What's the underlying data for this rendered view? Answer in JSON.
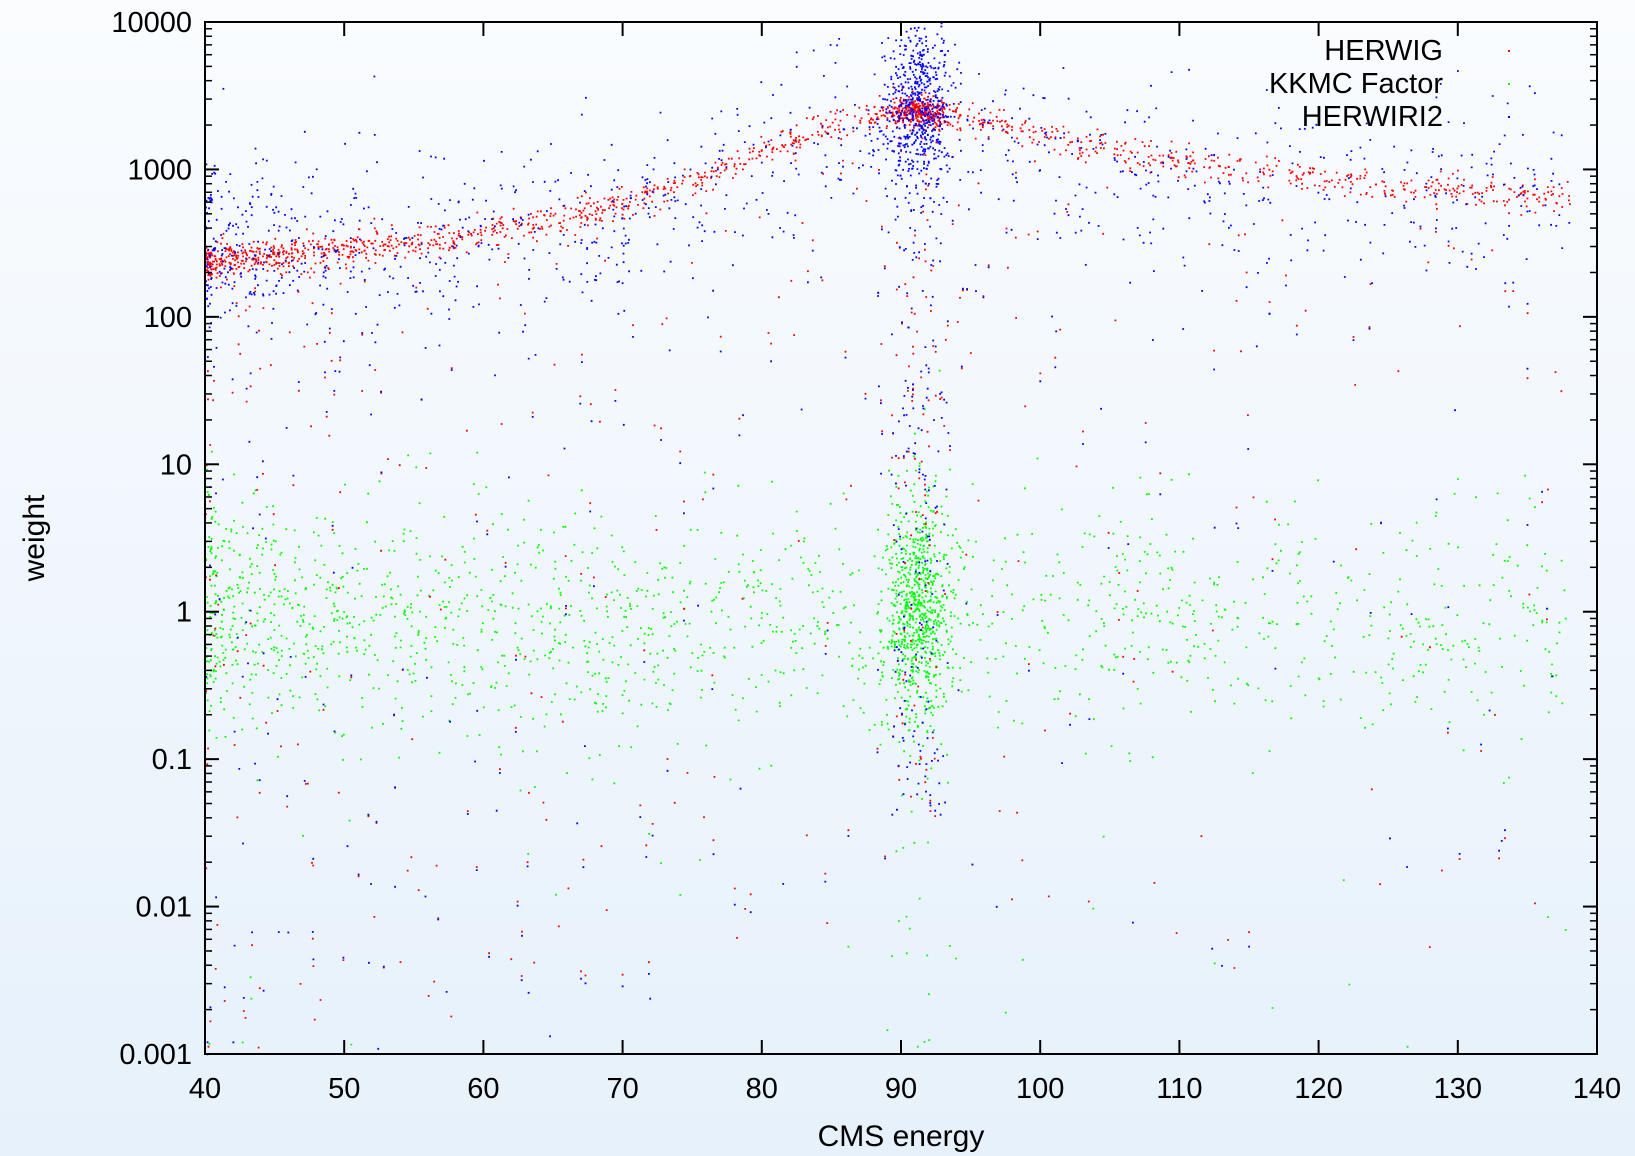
{
  "chart_data": {
    "type": "scatter",
    "title": "",
    "xlabel": "CMS energy",
    "ylabel": "weight",
    "xlim": [
      40,
      140
    ],
    "ylim": [
      0.001,
      10000
    ],
    "yscale": "log",
    "grid": false,
    "legend_position": "top-right",
    "x_ticks": [
      "40",
      "50",
      "60",
      "70",
      "80",
      "90",
      "100",
      "110",
      "120",
      "130",
      "140"
    ],
    "y_ticks": [
      "0.001",
      "0.01",
      "0.1",
      "1",
      "10",
      "100",
      "1000",
      "10000"
    ],
    "series": [
      {
        "name": "HERWIG",
        "color": "#ff0000",
        "description_points": {
          "x": [
            40,
            45,
            50,
            55,
            60,
            65,
            70,
            75,
            80,
            85,
            88,
            90,
            91.2,
            93,
            95,
            100,
            105,
            110,
            115,
            120,
            125,
            130,
            135,
            138
          ],
          "y": [
            240,
            265,
            290,
            320,
            370,
            450,
            600,
            850,
            1350,
            2000,
            2400,
            2550,
            2550,
            2400,
            2200,
            1700,
            1400,
            1150,
            1000,
            880,
            800,
            740,
            690,
            660
          ]
        }
      },
      {
        "name": "KKMC Factor",
        "color": "#00ff00",
        "description_points": {
          "x": [
            40,
            45,
            50,
            55,
            60,
            70,
            80,
            85,
            90,
            91.2,
            95,
            100,
            110,
            120,
            130,
            138
          ],
          "y": [
            1.05,
            1.0,
            0.95,
            0.9,
            0.85,
            0.8,
            0.85,
            0.95,
            1.05,
            1.05,
            1.0,
            0.95,
            0.9,
            0.85,
            0.85,
            0.85
          ]
        }
      },
      {
        "name": "HERWIRI2",
        "color": "#0000ff",
        "description_points": {
          "x": [
            40,
            45,
            50,
            55,
            60,
            70,
            80,
            85,
            90,
            91.2,
            93,
            95,
            100,
            105,
            110
          ],
          "y": [
            300,
            320,
            300,
            320,
            350,
            500,
            1000,
            1800,
            2600,
            2800,
            2600,
            2200,
            1500,
            1100,
            800
          ]
        }
      }
    ]
  }
}
